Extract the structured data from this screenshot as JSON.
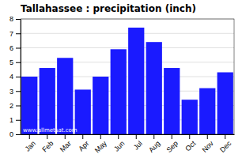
{
  "chart_data": {
    "type": "bar",
    "title": "Tallahassee : precipitation (inch)",
    "categories": [
      "Jan",
      "Feb",
      "Mar",
      "Apr",
      "May",
      "Jun",
      "Jul",
      "Aug",
      "Sep",
      "Oct",
      "Nov",
      "Dec"
    ],
    "values": [
      4.0,
      4.6,
      5.3,
      3.1,
      4.0,
      5.9,
      7.4,
      6.4,
      4.6,
      2.4,
      3.2,
      4.3
    ],
    "color": "#1a1aff",
    "ylim": [
      0,
      8
    ],
    "yticks": [
      0,
      1,
      2,
      3,
      4,
      5,
      6,
      7,
      8
    ],
    "grid": true,
    "annotation": "www.allmetsat.com"
  }
}
